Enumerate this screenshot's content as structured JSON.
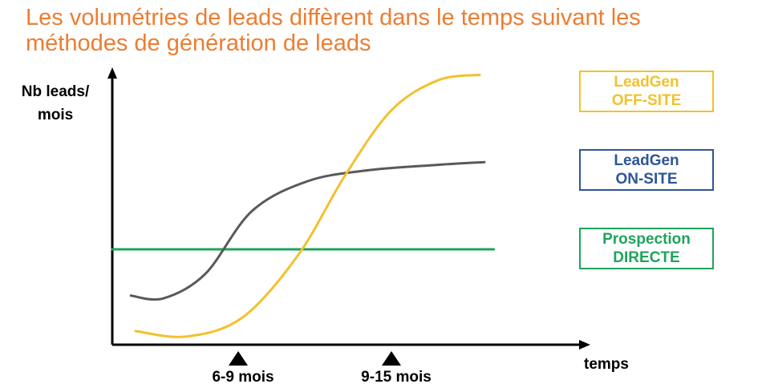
{
  "chart_data": {
    "type": "line",
    "title": "Les volumétries de leads diffèrent dans le temps suivant les méthodes de génération de leads",
    "ylabel_line1": "Nb leads/",
    "ylabel_line2": "mois",
    "xlabel": "temps",
    "x_ticks": [
      "6-9 mois",
      "9-15 mois"
    ],
    "series": [
      {
        "name_line1": "LeadGen",
        "name_line2": "OFF-SITE",
        "color": "#F2C12E",
        "points": [
          [
            0.05,
            0.05
          ],
          [
            0.16,
            0.03
          ],
          [
            0.28,
            0.1
          ],
          [
            0.4,
            0.33
          ],
          [
            0.5,
            0.62
          ],
          [
            0.6,
            0.86
          ],
          [
            0.7,
            0.97
          ],
          [
            0.79,
            0.99
          ]
        ]
      },
      {
        "name_line1": "LeadGen",
        "name_line2": "ON-SITE",
        "color": "#595959",
        "points": [
          [
            0.04,
            0.18
          ],
          [
            0.11,
            0.17
          ],
          [
            0.2,
            0.26
          ],
          [
            0.3,
            0.49
          ],
          [
            0.42,
            0.6
          ],
          [
            0.55,
            0.64
          ],
          [
            0.7,
            0.66
          ],
          [
            0.8,
            0.67
          ]
        ]
      },
      {
        "name_line1": "Prospection",
        "name_line2": "DIRECTE",
        "color": "#1FA35C",
        "points": [
          [
            0,
            0.35
          ],
          [
            0.82,
            0.35
          ]
        ]
      }
    ],
    "legend_border_colors": [
      "#F2C12E",
      "#2F5597",
      "#1FA35C"
    ],
    "legend_text_colors": [
      "#F2C12E",
      "#2F5597",
      "#1FA35C"
    ],
    "axis_color": "#000000",
    "grid": false,
    "legend_placement": "right"
  }
}
